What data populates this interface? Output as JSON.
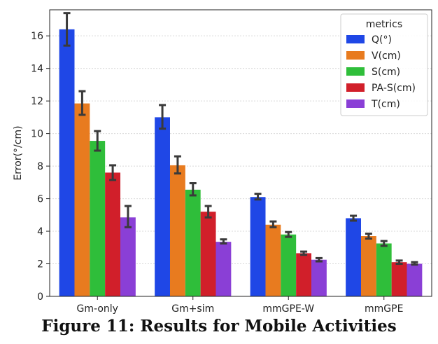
{
  "caption": "Figure 11: Results for Mobile Activities",
  "chart_data": {
    "type": "bar",
    "title": "",
    "xlabel": "",
    "ylabel": "Error(°/cm)",
    "ylim": [
      0,
      17.6
    ],
    "yticks": [
      0,
      2,
      4,
      6,
      8,
      10,
      12,
      14,
      16
    ],
    "grid": "horizontal",
    "categories": [
      "Gm-only",
      "Gm+sim",
      "mmGPE-W",
      "mmGPE"
    ],
    "legend": {
      "title": "metrics",
      "placement": "top-right"
    },
    "series": [
      {
        "name": "Q(°)",
        "color": "#1f47e6",
        "values": [
          16.4,
          11.0,
          6.1,
          4.8
        ],
        "err_low": [
          15.4,
          10.3,
          5.95,
          4.65
        ],
        "err_high": [
          17.4,
          11.75,
          6.3,
          4.95
        ]
      },
      {
        "name": "V(cm)",
        "color": "#e87b1f",
        "values": [
          11.85,
          8.05,
          4.4,
          3.7
        ],
        "err_low": [
          11.15,
          7.55,
          4.25,
          3.55
        ],
        "err_high": [
          12.6,
          8.6,
          4.6,
          3.85
        ]
      },
      {
        "name": "S(cm)",
        "color": "#2fbe3a",
        "values": [
          9.55,
          6.55,
          3.8,
          3.25
        ],
        "err_low": [
          8.95,
          6.2,
          3.65,
          3.1
        ],
        "err_high": [
          10.15,
          6.95,
          3.95,
          3.4
        ]
      },
      {
        "name": "PA-S(cm)",
        "color": "#d11f2a",
        "values": [
          7.6,
          5.2,
          2.65,
          2.1
        ],
        "err_low": [
          7.15,
          4.85,
          2.55,
          2.0
        ],
        "err_high": [
          8.05,
          5.55,
          2.75,
          2.2
        ]
      },
      {
        "name": "T(cm)",
        "color": "#8a3fd6",
        "values": [
          4.85,
          3.35,
          2.25,
          2.0
        ],
        "err_low": [
          4.25,
          3.25,
          2.15,
          1.95
        ],
        "err_high": [
          5.55,
          3.5,
          2.35,
          2.1
        ]
      }
    ]
  }
}
